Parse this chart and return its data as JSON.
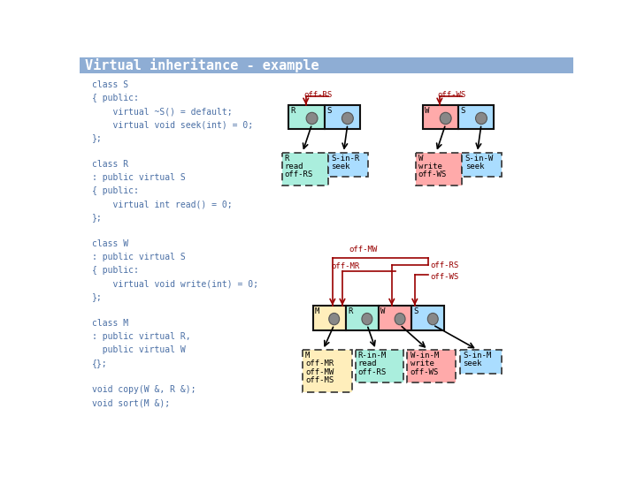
{
  "title": "Virtual inheritance - example",
  "title_bg": "#8eadd4",
  "title_color": "white",
  "bg_color": "white",
  "code_lines": [
    "class S",
    "{ public:",
    "    virtual ~S() = default;",
    "    virtual void seek(int) = 0;",
    "};",
    "",
    "class R",
    ": public virtual S",
    "{ public:",
    "    virtual int read() = 0;",
    "};",
    "",
    "class W",
    ": public virtual S",
    "{ public:",
    "    virtual void write(int) = 0;",
    "};",
    "",
    "class M",
    ": public virtual R,",
    "  public virtual W",
    "{};",
    "",
    "void copy(W &, R &);",
    "void sort(M &);"
  ],
  "code_color": "#4a6fa5",
  "colors": {
    "R": "#aaeedd",
    "S": "#aaddff",
    "W": "#ffaaaa",
    "M": "#ffeebb"
  },
  "arrow_color": "#990000",
  "node_border": "#111111",
  "dashed_border": "#333333"
}
